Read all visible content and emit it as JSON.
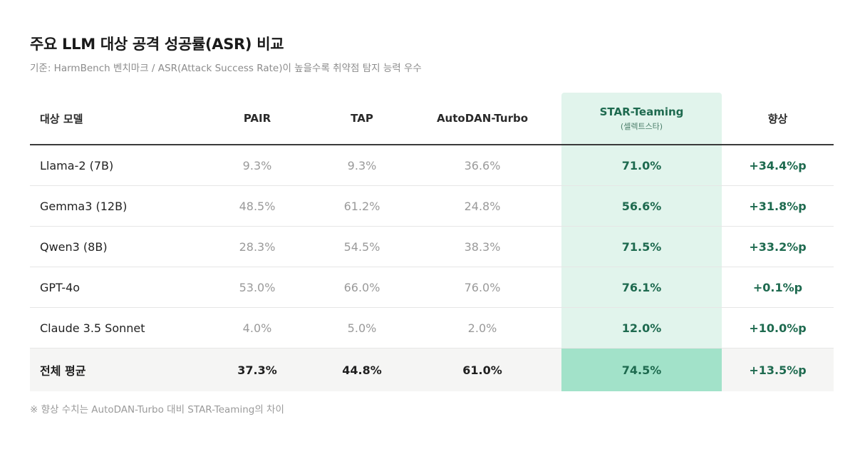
{
  "title": "주요 LLM 대상 공격 성공률(ASR) 비교",
  "subtitle": "기준: HarmBench 벤치마크 / ASR(Attack Success Rate)이 높을수록 취약점 탐지 능력 우수",
  "headers": {
    "model": "대상 모델",
    "pair": "PAIR",
    "tap": "TAP",
    "autodan": "AutoDAN-Turbo",
    "star": "STAR-Teaming",
    "star_sub": "(셀렉트스타)",
    "gain": "향상"
  },
  "rows": [
    {
      "model": "Llama-2 (7B)",
      "pair": "9.3%",
      "tap": "9.3%",
      "autodan": "36.6%",
      "star": "71.0%",
      "gain": "+34.4%p"
    },
    {
      "model": "Gemma3 (12B)",
      "pair": "48.5%",
      "tap": "61.2%",
      "autodan": "24.8%",
      "star": "56.6%",
      "gain": "+31.8%p"
    },
    {
      "model": "Qwen3 (8B)",
      "pair": "28.3%",
      "tap": "54.5%",
      "autodan": "38.3%",
      "star": "71.5%",
      "gain": "+33.2%p"
    },
    {
      "model": "GPT-4o",
      "pair": "53.0%",
      "tap": "66.0%",
      "autodan": "76.0%",
      "star": "76.1%",
      "gain": "+0.1%p"
    },
    {
      "model": "Claude 3.5 Sonnet",
      "pair": "4.0%",
      "tap": "5.0%",
      "autodan": "2.0%",
      "star": "12.0%",
      "gain": "+10.0%p"
    }
  ],
  "average": {
    "model": "전체 평균",
    "pair": "37.3%",
    "tap": "44.8%",
    "autodan": "61.0%",
    "star": "74.5%",
    "gain": "+13.5%p"
  },
  "footnote": "※ 향상 수치는 AutoDAN-Turbo 대비 STAR-Teaming의 차이",
  "colors": {
    "highlight_column": "#e1f4ec",
    "highlight_average": "#a2e2c9",
    "accent_text": "#1e6a4f",
    "muted_text": "#9a9a9a",
    "average_row_bg": "#f5f5f4"
  }
}
